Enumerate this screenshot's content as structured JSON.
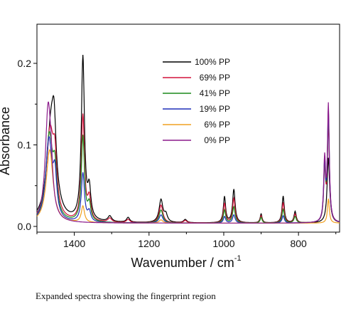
{
  "chart_data": {
    "type": "line",
    "title": "",
    "xlabel": "Wavenumber / cm",
    "xlabel_superscript": "-1",
    "ylabel": "Absorbance",
    "xlim": [
      1500,
      690
    ],
    "ylim": [
      -0.007,
      0.248
    ],
    "x_reversed": true,
    "x_ticks": [
      1400,
      1200,
      1000,
      800
    ],
    "x_tick_labels": [
      "1400",
      "1200",
      "1000",
      "800"
    ],
    "y_ticks": [
      0.0,
      0.1,
      0.2
    ],
    "y_tick_labels": [
      "0.0",
      "0.1",
      "0.2"
    ],
    "grid": false,
    "legend_position": "top-center",
    "baseline": 0.004,
    "series": [
      {
        "name": "100% PP",
        "color": "#000000",
        "peaks": [
          {
            "x": 1462,
            "h": 0.12,
            "w": 14
          },
          {
            "x": 1454,
            "h": 0.06,
            "w": 6
          },
          {
            "x": 1377,
            "h": 0.2,
            "w": 5
          },
          {
            "x": 1360,
            "h": 0.035,
            "w": 5
          },
          {
            "x": 1305,
            "h": 0.007,
            "w": 6
          },
          {
            "x": 1256,
            "h": 0.006,
            "w": 5
          },
          {
            "x": 1168,
            "h": 0.028,
            "w": 6
          },
          {
            "x": 1155,
            "h": 0.009,
            "w": 5
          },
          {
            "x": 1103,
            "h": 0.004,
            "w": 5
          },
          {
            "x": 998,
            "h": 0.032,
            "w": 3.5
          },
          {
            "x": 973,
            "h": 0.041,
            "w": 4
          },
          {
            "x": 900,
            "h": 0.011,
            "w": 3
          },
          {
            "x": 841,
            "h": 0.033,
            "w": 3.5
          },
          {
            "x": 809,
            "h": 0.014,
            "w": 3.5
          },
          {
            "x": 720,
            "h": 0.08,
            "w": 4
          }
        ]
      },
      {
        "name": "69% PP",
        "color": "#d4143b",
        "peaks": [
          {
            "x": 1465,
            "h": 0.11,
            "w": 12
          },
          {
            "x": 1452,
            "h": 0.055,
            "w": 6
          },
          {
            "x": 1377,
            "h": 0.13,
            "w": 5
          },
          {
            "x": 1360,
            "h": 0.026,
            "w": 5
          },
          {
            "x": 1305,
            "h": 0.005,
            "w": 6
          },
          {
            "x": 1256,
            "h": 0.004,
            "w": 5
          },
          {
            "x": 1168,
            "h": 0.022,
            "w": 6
          },
          {
            "x": 1103,
            "h": 0.003,
            "w": 5
          },
          {
            "x": 998,
            "h": 0.024,
            "w": 3.5
          },
          {
            "x": 973,
            "h": 0.03,
            "w": 4
          },
          {
            "x": 900,
            "h": 0.009,
            "w": 3
          },
          {
            "x": 841,
            "h": 0.025,
            "w": 3.5
          },
          {
            "x": 809,
            "h": 0.011,
            "w": 3.5
          },
          {
            "x": 730,
            "h": 0.065,
            "w": 3
          },
          {
            "x": 720,
            "h": 0.12,
            "w": 3
          }
        ]
      },
      {
        "name": "41% PP",
        "color": "#1a8a1a",
        "peaks": [
          {
            "x": 1467,
            "h": 0.105,
            "w": 11
          },
          {
            "x": 1452,
            "h": 0.05,
            "w": 6
          },
          {
            "x": 1377,
            "h": 0.105,
            "w": 5
          },
          {
            "x": 1360,
            "h": 0.02,
            "w": 5
          },
          {
            "x": 1168,
            "h": 0.016,
            "w": 6
          },
          {
            "x": 998,
            "h": 0.016,
            "w": 3.5
          },
          {
            "x": 973,
            "h": 0.02,
            "w": 4
          },
          {
            "x": 900,
            "h": 0.007,
            "w": 3
          },
          {
            "x": 841,
            "h": 0.017,
            "w": 3.5
          },
          {
            "x": 809,
            "h": 0.008,
            "w": 3.5
          },
          {
            "x": 730,
            "h": 0.068,
            "w": 3
          },
          {
            "x": 720,
            "h": 0.13,
            "w": 3
          }
        ]
      },
      {
        "name": "19% PP",
        "color": "#1f2fb8",
        "peaks": [
          {
            "x": 1468,
            "h": 0.1,
            "w": 10
          },
          {
            "x": 1452,
            "h": 0.048,
            "w": 6
          },
          {
            "x": 1377,
            "h": 0.06,
            "w": 5
          },
          {
            "x": 1360,
            "h": 0.012,
            "w": 5
          },
          {
            "x": 1168,
            "h": 0.01,
            "w": 6
          },
          {
            "x": 998,
            "h": 0.008,
            "w": 3.5
          },
          {
            "x": 973,
            "h": 0.01,
            "w": 4
          },
          {
            "x": 841,
            "h": 0.009,
            "w": 3.5
          },
          {
            "x": 730,
            "h": 0.07,
            "w": 3
          },
          {
            "x": 720,
            "h": 0.135,
            "w": 3
          }
        ]
      },
      {
        "name": "6% PP",
        "color": "#f0a020",
        "peaks": [
          {
            "x": 1466,
            "h": 0.09,
            "w": 11
          },
          {
            "x": 1377,
            "h": 0.02,
            "w": 5
          },
          {
            "x": 1168,
            "h": 0.004,
            "w": 6
          },
          {
            "x": 720,
            "h": 0.03,
            "w": 3
          }
        ]
      },
      {
        "name": "0% PP",
        "color": "#8b1a8b",
        "peaks": [
          {
            "x": 1470,
            "h": 0.14,
            "w": 9
          },
          {
            "x": 1462,
            "h": 0.03,
            "w": 5
          },
          {
            "x": 730,
            "h": 0.075,
            "w": 3
          },
          {
            "x": 720,
            "h": 0.142,
            "w": 3
          }
        ]
      }
    ]
  },
  "caption": "Expanded spectra showing the fingerprint region"
}
